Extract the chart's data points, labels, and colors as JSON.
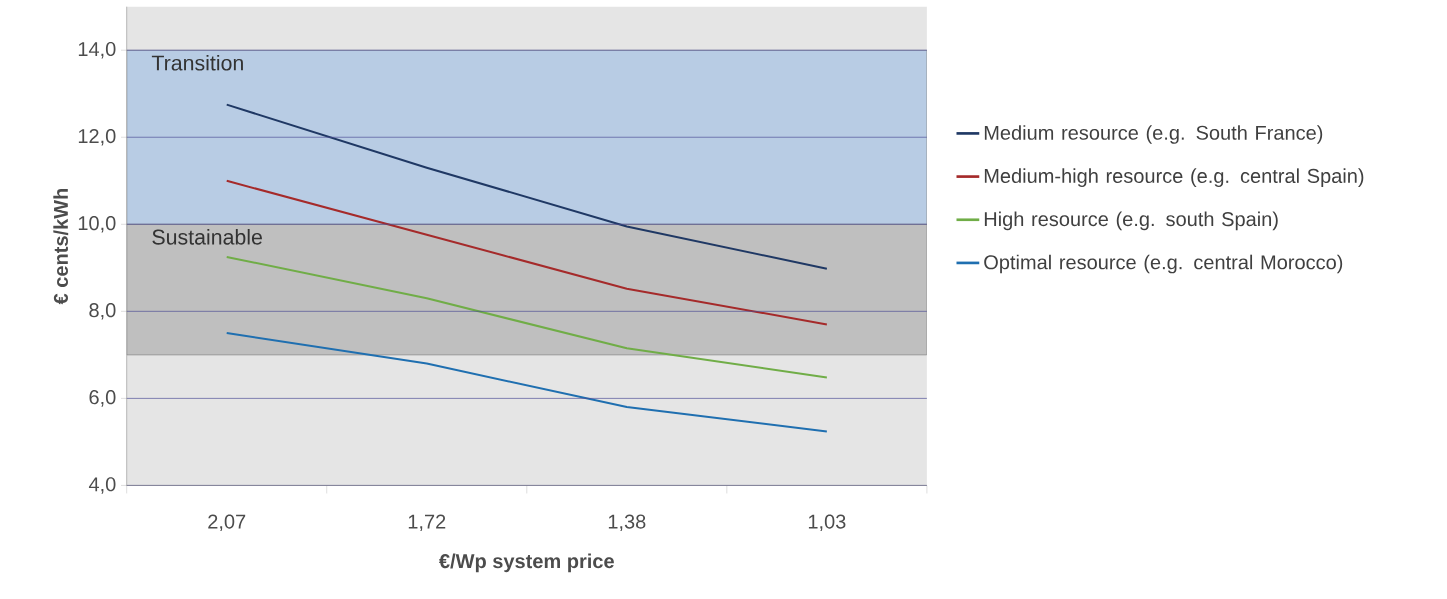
{
  "chart_data": {
    "type": "line",
    "xlabel": "€/Wp system price",
    "ylabel": "€ cents/kWh",
    "categories": [
      "2,07",
      "1,72",
      "1,38",
      "1,03"
    ],
    "series": [
      {
        "name": "Medium resource (e.g. South France)",
        "color": "#1f3864",
        "values": [
          12.75,
          11.3,
          9.95,
          8.98
        ]
      },
      {
        "name": "Medium-high resource (e.g. central Spain)",
        "color": "#a52a2a",
        "values": [
          11.0,
          9.76,
          8.52,
          7.7
        ]
      },
      {
        "name": "High resource (e.g. south Spain)",
        "color": "#70ad47",
        "values": [
          9.25,
          8.3,
          7.15,
          6.48
        ]
      },
      {
        "name": "Optimal resource (e.g. central Morocco)",
        "color": "#1f6fb0",
        "values": [
          7.5,
          6.8,
          5.8,
          5.24
        ]
      }
    ],
    "ylim": [
      4,
      15
    ],
    "yticks": [
      {
        "value": 4,
        "label": "4,0"
      },
      {
        "value": 6,
        "label": "6,0"
      },
      {
        "value": 8,
        "label": "8,0"
      },
      {
        "value": 10,
        "label": "10,0"
      },
      {
        "value": 12,
        "label": "12,0"
      },
      {
        "value": 14,
        "label": "14,0"
      }
    ],
    "bands": [
      {
        "axis": "y",
        "from": 10,
        "to": 14,
        "label": "Transition",
        "color": "#b8cce4"
      },
      {
        "axis": "y",
        "from": 7,
        "to": 10,
        "label": "Sustainable",
        "color": "#bfbfbf"
      }
    ],
    "grid": "y",
    "legend": "right",
    "marker": "none",
    "line_style": "solid"
  }
}
